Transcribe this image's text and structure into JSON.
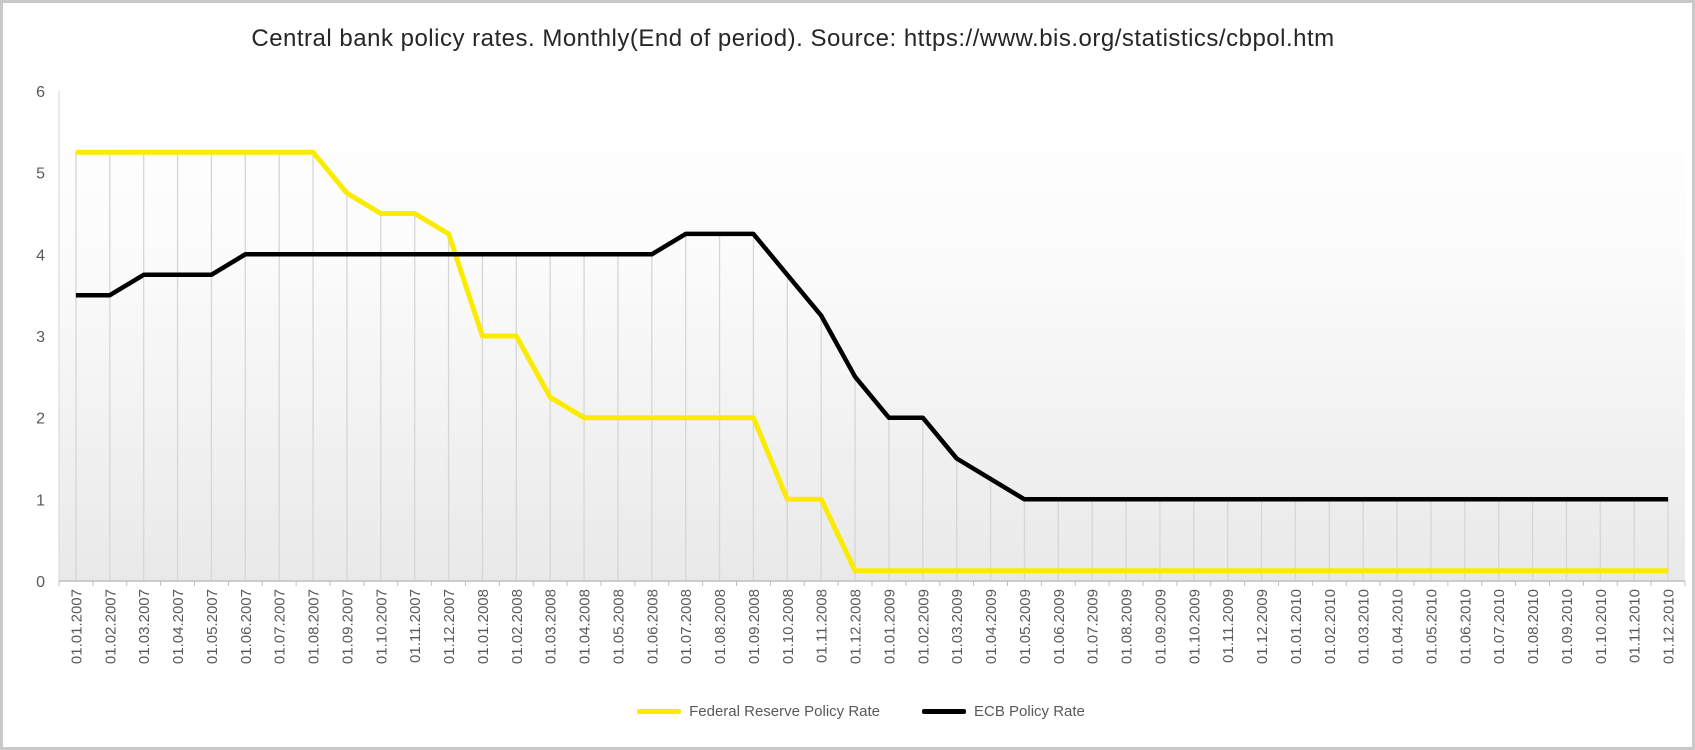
{
  "frame": {
    "border_color": "#c9c9c9",
    "background": "#ffffff"
  },
  "chart_data": {
    "type": "line",
    "title": "Central bank policy rates. Monthly(End of period). Source: https://www.bis.org/statistics/cbpol.htm",
    "xlabel": "",
    "ylabel": "",
    "ylim": [
      0,
      6
    ],
    "yticks": [
      0,
      1,
      2,
      3,
      4,
      5,
      6
    ],
    "ytick_labels": [
      "0",
      "1",
      "2",
      "3",
      "4",
      "5",
      "6"
    ],
    "grid": "vertical drop lines from topmost series point down to x-axis, no horizontal gridlines",
    "legend_position": "bottom-center",
    "axis_label_color": "#595959",
    "gridline_color": "#d6d6d6",
    "axis_line_color": "#bfbfbf",
    "categories": [
      "01.01.2007",
      "01.02.2007",
      "01.03.2007",
      "01.04.2007",
      "01.05.2007",
      "01.06.2007",
      "01.07.2007",
      "01.08.2007",
      "01.09.2007",
      "01.10.2007",
      "01.11.2007",
      "01.12.2007",
      "01.01.2008",
      "01.02.2008",
      "01.03.2008",
      "01.04.2008",
      "01.05.2008",
      "01.06.2008",
      "01.07.2008",
      "01.08.2008",
      "01.09.2008",
      "01.10.2008",
      "01.11.2008",
      "01.12.2008",
      "01.01.2009",
      "01.02.2009",
      "01.03.2009",
      "01.04.2009",
      "01.05.2009",
      "01.06.2009",
      "01.07.2009",
      "01.08.2009",
      "01.09.2009",
      "01.10.2009",
      "01.11.2009",
      "01.12.2009",
      "01.01.2010",
      "01.02.2010",
      "01.03.2010",
      "01.04.2010",
      "01.05.2010",
      "01.06.2010",
      "01.07.2010",
      "01.08.2010",
      "01.09.2010",
      "01.10.2010",
      "01.11.2010",
      "01.12.2010"
    ],
    "series": [
      {
        "name": "Federal Reserve Policy Rate",
        "color": "#faeb00",
        "values": [
          5.25,
          5.25,
          5.25,
          5.25,
          5.25,
          5.25,
          5.25,
          5.25,
          4.75,
          4.5,
          4.5,
          4.25,
          3.0,
          3.0,
          2.25,
          2.0,
          2.0,
          2.0,
          2.0,
          2.0,
          2.0,
          1.0,
          1.0,
          0.125,
          0.125,
          0.125,
          0.125,
          0.125,
          0.125,
          0.125,
          0.125,
          0.125,
          0.125,
          0.125,
          0.125,
          0.125,
          0.125,
          0.125,
          0.125,
          0.125,
          0.125,
          0.125,
          0.125,
          0.125,
          0.125,
          0.125,
          0.125,
          0.125
        ]
      },
      {
        "name": "ECB Policy Rate",
        "color": "#000000",
        "values": [
          3.5,
          3.5,
          3.75,
          3.75,
          3.75,
          4.0,
          4.0,
          4.0,
          4.0,
          4.0,
          4.0,
          4.0,
          4.0,
          4.0,
          4.0,
          4.0,
          4.0,
          4.0,
          4.25,
          4.25,
          4.25,
          3.75,
          3.25,
          2.5,
          2.0,
          2.0,
          1.5,
          1.25,
          1.0,
          1.0,
          1.0,
          1.0,
          1.0,
          1.0,
          1.0,
          1.0,
          1.0,
          1.0,
          1.0,
          1.0,
          1.0,
          1.0,
          1.0,
          1.0,
          1.0,
          1.0,
          1.0,
          1.0
        ]
      }
    ]
  }
}
